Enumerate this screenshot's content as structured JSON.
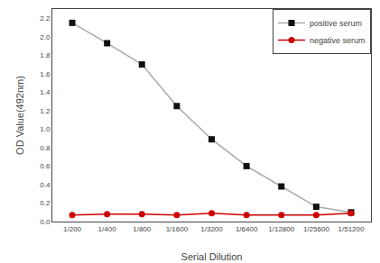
{
  "chart_data": {
    "type": "line",
    "categories": [
      "1/200",
      "1/400",
      "1/800",
      "1/1600",
      "1/3200",
      "1/6400",
      "1/12800",
      "1/25600",
      "1/51200"
    ],
    "series": [
      {
        "name": "positive serum",
        "color": "#aaaaaa",
        "marker": "square",
        "colors": [
          "#111111",
          "#111111",
          "#111111",
          "#111111",
          "#111111",
          "#111111",
          "#111111",
          "#111111",
          "#111111"
        ],
        "values": [
          2.15,
          1.93,
          1.7,
          1.25,
          0.89,
          0.6,
          0.38,
          0.16,
          0.1
        ]
      },
      {
        "name": "negative serum",
        "color": "#cc0000",
        "marker": "circle",
        "values": [
          0.07,
          0.08,
          0.08,
          0.07,
          0.09,
          0.07,
          0.07,
          0.07,
          0.09
        ]
      }
    ],
    "xlabel": "Serial Dilution",
    "ylabel": "OD Value(492nm)",
    "ylim": [
      0,
      2.3
    ],
    "yticks": [
      {
        "value": 0,
        "label": "0.0"
      },
      0.2,
      0.4,
      0.6,
      0.8,
      {
        "value": 1,
        "label": "1.0"
      },
      1.2,
      1.4,
      1.6,
      1.8,
      {
        "value": 2,
        "label": "2.0"
      },
      2.2
    ],
    "grid": false,
    "legend": "upper right"
  }
}
